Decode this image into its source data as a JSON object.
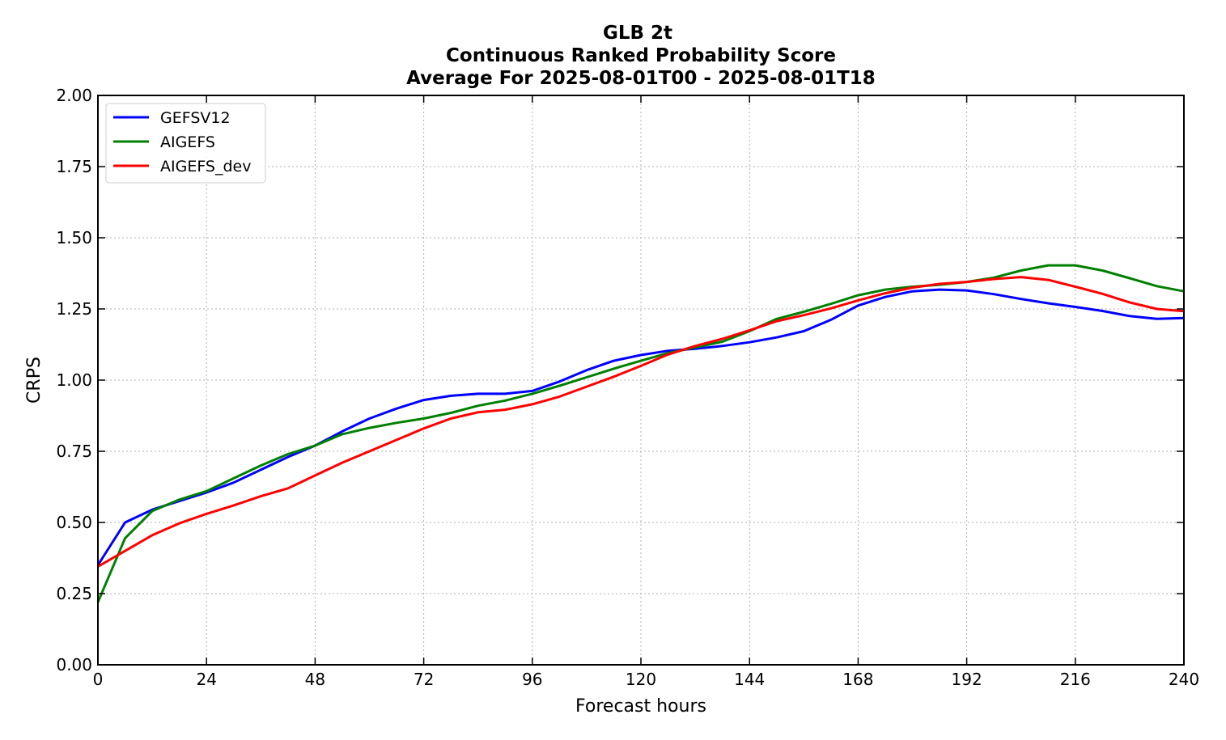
{
  "chart_data": {
    "type": "line",
    "title_lines": [
      "GLB 2t",
      "Continuous Ranked Probability Score",
      "Average For 2025-08-01T00 - 2025-08-01T18"
    ],
    "xlabel": "Forecast hours",
    "ylabel": "CRPS",
    "xlim": [
      0,
      240
    ],
    "ylim": [
      0,
      2.0
    ],
    "xticks": [
      0,
      24,
      48,
      72,
      96,
      120,
      144,
      168,
      192,
      216,
      240
    ],
    "xtick_labels": [
      "0",
      "24",
      "48",
      "72",
      "96",
      "120",
      "144",
      "168",
      "192",
      "216",
      "240"
    ],
    "yticks": [
      0,
      0.25,
      0.5,
      0.75,
      1.0,
      1.25,
      1.5,
      1.75,
      2.0
    ],
    "ytick_labels": [
      "0.00",
      "0.25",
      "0.50",
      "0.75",
      "1.00",
      "1.25",
      "1.50",
      "1.75",
      "2.00"
    ],
    "grid": true,
    "legend_position": "top-left",
    "x": [
      0,
      6,
      12,
      18,
      24,
      30,
      36,
      42,
      48,
      54,
      60,
      66,
      72,
      78,
      84,
      90,
      96,
      102,
      108,
      114,
      120,
      126,
      132,
      138,
      144,
      150,
      156,
      162,
      168,
      174,
      180,
      186,
      192,
      198,
      204,
      210,
      216,
      222,
      228,
      234,
      240
    ],
    "series": [
      {
        "name": "GEFSV12",
        "color": "#0000ff",
        "values": [
          0.35,
          0.5,
          0.545,
          0.575,
          0.605,
          0.64,
          0.685,
          0.73,
          0.77,
          0.82,
          0.865,
          0.9,
          0.93,
          0.945,
          0.952,
          0.952,
          0.962,
          0.995,
          1.035,
          1.068,
          1.088,
          1.103,
          1.11,
          1.12,
          1.133,
          1.15,
          1.172,
          1.212,
          1.262,
          1.292,
          1.312,
          1.318,
          1.315,
          1.302,
          1.285,
          1.27,
          1.257,
          1.243,
          1.225,
          1.215,
          1.218
        ]
      },
      {
        "name": "AIGEFS",
        "color": "#008000",
        "values": [
          0.22,
          0.445,
          0.54,
          0.58,
          0.61,
          0.655,
          0.7,
          0.74,
          0.77,
          0.81,
          0.832,
          0.85,
          0.865,
          0.885,
          0.91,
          0.928,
          0.952,
          0.98,
          1.01,
          1.04,
          1.068,
          1.095,
          1.115,
          1.135,
          1.172,
          1.215,
          1.24,
          1.268,
          1.298,
          1.318,
          1.328,
          1.335,
          1.345,
          1.36,
          1.385,
          1.403,
          1.403,
          1.385,
          1.358,
          1.33,
          1.312
        ]
      },
      {
        "name": "AIGEFS_dev",
        "color": "#ff0000",
        "values": [
          0.345,
          0.4,
          0.455,
          0.497,
          0.53,
          0.56,
          0.592,
          0.62,
          0.665,
          0.71,
          0.75,
          0.79,
          0.83,
          0.865,
          0.887,
          0.896,
          0.915,
          0.942,
          0.977,
          1.012,
          1.05,
          1.09,
          1.12,
          1.145,
          1.175,
          1.207,
          1.228,
          1.252,
          1.28,
          1.305,
          1.325,
          1.338,
          1.345,
          1.355,
          1.362,
          1.352,
          1.328,
          1.303,
          1.273,
          1.25,
          1.242
        ]
      }
    ]
  }
}
